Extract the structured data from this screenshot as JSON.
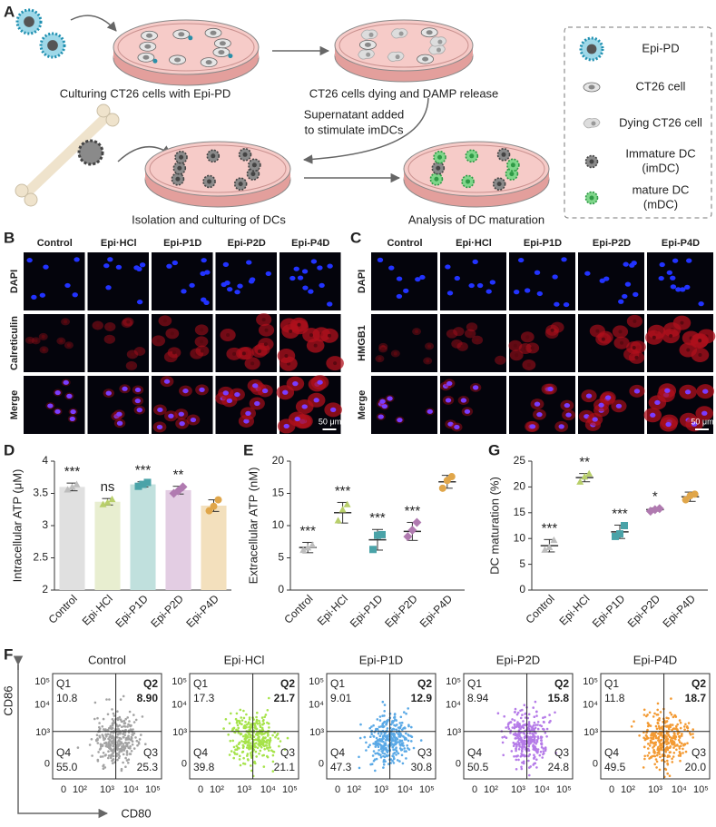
{
  "panel_labels": [
    "A",
    "B",
    "C",
    "D",
    "E",
    "F",
    "G"
  ],
  "schematic": {
    "steps": [
      "Culturing CT26 cells with Epi-PD",
      "CT26 cells dying and DAMP release",
      "Isolation and culturing of DCs",
      "Analysis of DC maturation"
    ],
    "arrow_note": [
      "Supernatant added",
      "to stimulate imDCs"
    ],
    "legend": [
      [
        "Epi-PD"
      ],
      [
        "CT26 cell"
      ],
      [
        "Dying CT26 cell"
      ],
      [
        "Immature DC",
        "(imDC)"
      ],
      [
        "mature DC",
        "(mDC)"
      ]
    ]
  },
  "microscopy": [
    {
      "columns": [
        "Control",
        "Epi·HCl",
        "Epi-P1D",
        "Epi-P2D",
        "Epi-P4D"
      ],
      "rows": [
        "DAPI",
        "Calreticulin",
        "Merge"
      ],
      "scale_bar": "50 μm"
    },
    {
      "columns": [
        "Control",
        "Epi·HCl",
        "Epi-P1D",
        "Epi-P2D",
        "Epi-P4D"
      ],
      "rows": [
        "DAPI",
        "HMGB1",
        "Merge"
      ],
      "scale_bar": "50 μm"
    }
  ],
  "chart_data": [
    {
      "type": "bar",
      "ylabel": "Intracellular ATP (μM)",
      "categories": [
        "Control",
        "Epi·HCl",
        "Epi-P1D",
        "Epi-P2D",
        "Epi-P4D"
      ],
      "values": [
        3.6,
        3.37,
        3.64,
        3.55,
        3.31
      ],
      "errors": [
        0.06,
        0.05,
        0.04,
        0.06,
        0.09
      ],
      "points": [
        [
          3.56,
          3.6,
          3.64
        ],
        [
          3.33,
          3.36,
          3.41
        ],
        [
          3.61,
          3.64,
          3.67
        ],
        [
          3.5,
          3.54,
          3.6
        ],
        [
          3.23,
          3.3,
          3.4
        ]
      ],
      "significance": [
        "***",
        "ns",
        "***",
        "**",
        null
      ],
      "bar_colors": [
        "#e0e0e0",
        "#e8eed0",
        "#c0e0dd",
        "#e3cde3",
        "#f3e0bd"
      ],
      "point_colors": [
        "#bdbdbd",
        "#b8cf6a",
        "#4aa3a8",
        "#b07ab0",
        "#e0a64a"
      ],
      "markers": [
        "triangle",
        "triangle",
        "square",
        "diamond",
        "circle"
      ],
      "ylim": [
        2,
        4
      ],
      "yticks": [
        2,
        2.5,
        3,
        3.5,
        4
      ]
    },
    {
      "type": "dot",
      "ylabel": "Extracellular ATP (nM)",
      "categories": [
        "Control",
        "Epi·HCl",
        "Epi-P1D",
        "Epi-P2D",
        "Epi-P4D"
      ],
      "values": [
        6.6,
        12.0,
        7.8,
        9.1,
        16.8
      ],
      "errors": [
        0.8,
        1.6,
        1.6,
        1.4,
        1.0
      ],
      "points": [
        [
          6.2,
          6.6,
          7.0
        ],
        [
          10.8,
          12.5,
          13.3
        ],
        [
          6.3,
          8.5,
          8.6
        ],
        [
          8.3,
          9.3,
          10.5
        ],
        [
          15.8,
          17.0,
          17.6
        ]
      ],
      "significance": [
        "***",
        "***",
        "***",
        "***",
        null
      ],
      "point_colors": [
        "#bdbdbd",
        "#b8cf6a",
        "#4aa3a8",
        "#b07ab0",
        "#e0a64a"
      ],
      "markers": [
        "triangle",
        "triangle",
        "square",
        "diamond",
        "circle"
      ],
      "ylim": [
        0,
        20
      ],
      "yticks": [
        0,
        5,
        10,
        15,
        20
      ]
    },
    {
      "type": "dot",
      "ylabel": "DC maturation (%)",
      "categories": [
        "Control",
        "Epi·HCl",
        "Epi-P1D",
        "Epi-P2D",
        "Epi-P4D"
      ],
      "values": [
        8.6,
        21.8,
        11.3,
        15.6,
        18.1
      ],
      "errors": [
        1.2,
        0.8,
        1.3,
        0.3,
        0.9
      ],
      "points": [
        [
          7.8,
          8.3,
          9.7
        ],
        [
          21.0,
          22.0,
          22.6
        ],
        [
          10.4,
          10.9,
          12.5
        ],
        [
          15.3,
          15.6,
          15.8
        ],
        [
          17.5,
          18.3,
          18.6
        ]
      ],
      "significance": [
        "***",
        "**",
        "***",
        "*",
        null
      ],
      "point_colors": [
        "#bdbdbd",
        "#b8cf6a",
        "#4aa3a8",
        "#b07ab0",
        "#e0a64a"
      ],
      "markers": [
        "triangle",
        "triangle",
        "square",
        "diamond",
        "circle"
      ],
      "ylim": [
        0,
        25
      ],
      "yticks": [
        0,
        5,
        10,
        15,
        20,
        25
      ]
    }
  ],
  "flow": {
    "y_label": "CD86",
    "x_label": "CD80",
    "quadrants": [
      "Q1",
      "Q2",
      "Q3",
      "Q4"
    ],
    "yticks": [
      "10⁵",
      "10⁴",
      "10³",
      "0"
    ],
    "xticks": [
      "0",
      "10²",
      "10³",
      "10⁴",
      "10⁵"
    ],
    "plots": [
      {
        "title": "Control",
        "color": "#a3a3a3",
        "q1": "10.8",
        "q2": "8.90",
        "q3": "25.3",
        "q4": "55.0"
      },
      {
        "title": "Epi·HCl",
        "color": "#a6e34a",
        "q1": "17.3",
        "q2": "21.7",
        "q3": "21.1",
        "q4": "39.8"
      },
      {
        "title": "Epi-P1D",
        "color": "#5aa9e6",
        "q1": "9.01",
        "q2": "12.9",
        "q3": "30.8",
        "q4": "47.3"
      },
      {
        "title": "Epi-P2D",
        "color": "#b57be8",
        "q1": "8.94",
        "q2": "15.8",
        "q3": "24.8",
        "q4": "50.5"
      },
      {
        "title": "Epi-P4D",
        "color": "#f39a33",
        "q1": "11.8",
        "q2": "18.7",
        "q3": "20.0",
        "q4": "49.5"
      }
    ]
  }
}
